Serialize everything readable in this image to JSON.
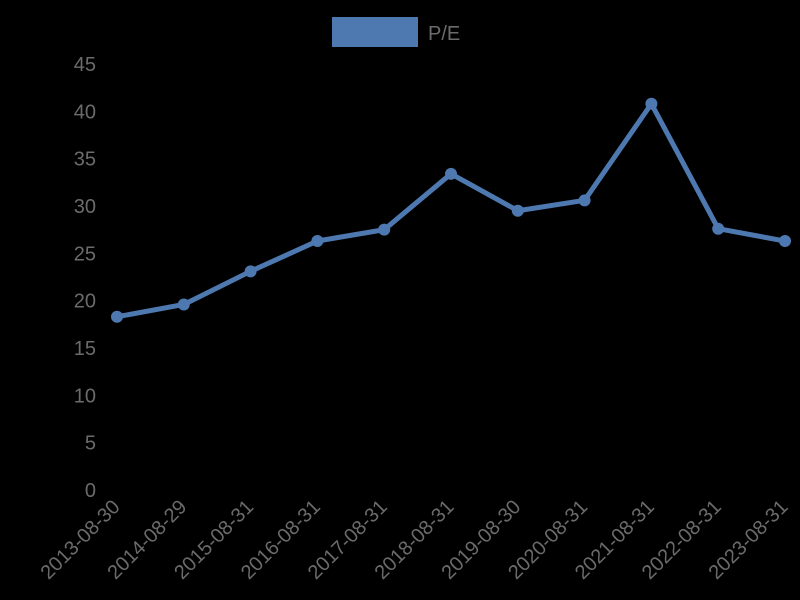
{
  "chart_data": {
    "type": "line",
    "title": "",
    "xlabel": "",
    "ylabel": "",
    "categories": [
      "2013-08-30",
      "2014-08-29",
      "2015-08-31",
      "2016-08-31",
      "2017-08-31",
      "2018-08-31",
      "2019-08-30",
      "2020-08-31",
      "2021-08-31",
      "2022-08-31",
      "2023-08-31"
    ],
    "series": [
      {
        "name": "P/E",
        "color": "#4e79b0",
        "values": [
          18.3,
          19.6,
          23.1,
          26.3,
          27.5,
          33.4,
          29.5,
          30.6,
          40.8,
          27.6,
          26.3
        ]
      }
    ],
    "ylim": [
      0,
      45
    ],
    "yticks": [
      0,
      5,
      10,
      15,
      20,
      25,
      30,
      35,
      40,
      45
    ],
    "grid": false,
    "legend_position": "top-center"
  },
  "legend": {
    "label": "P/E",
    "color": "#4e79b0"
  },
  "colors": {
    "background": "#000000",
    "text": "#6b6b6b",
    "line": "#4e79b0"
  }
}
